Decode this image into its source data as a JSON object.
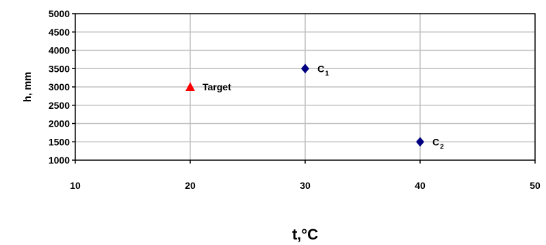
{
  "chart_data": {
    "type": "scatter",
    "title": "",
    "xlabel": "t,°C",
    "ylabel": "h, mm",
    "xlim": [
      10,
      50
    ],
    "ylim": [
      1000,
      5000
    ],
    "x_ticks": [
      10,
      20,
      30,
      40,
      50
    ],
    "y_ticks": [
      1000,
      1500,
      2000,
      2500,
      3000,
      3500,
      4000,
      4500,
      5000
    ],
    "grid": true,
    "points": [
      {
        "label": "Target",
        "subscript": "",
        "x": 20,
        "y": 3000,
        "marker": "triangle",
        "color": "#ff0000"
      },
      {
        "label": "C",
        "subscript": "1",
        "x": 30,
        "y": 3500,
        "marker": "diamond",
        "color": "#000080"
      },
      {
        "label": "C",
        "subscript": "2",
        "x": 40,
        "y": 1500,
        "marker": "diamond",
        "color": "#000080"
      }
    ]
  }
}
